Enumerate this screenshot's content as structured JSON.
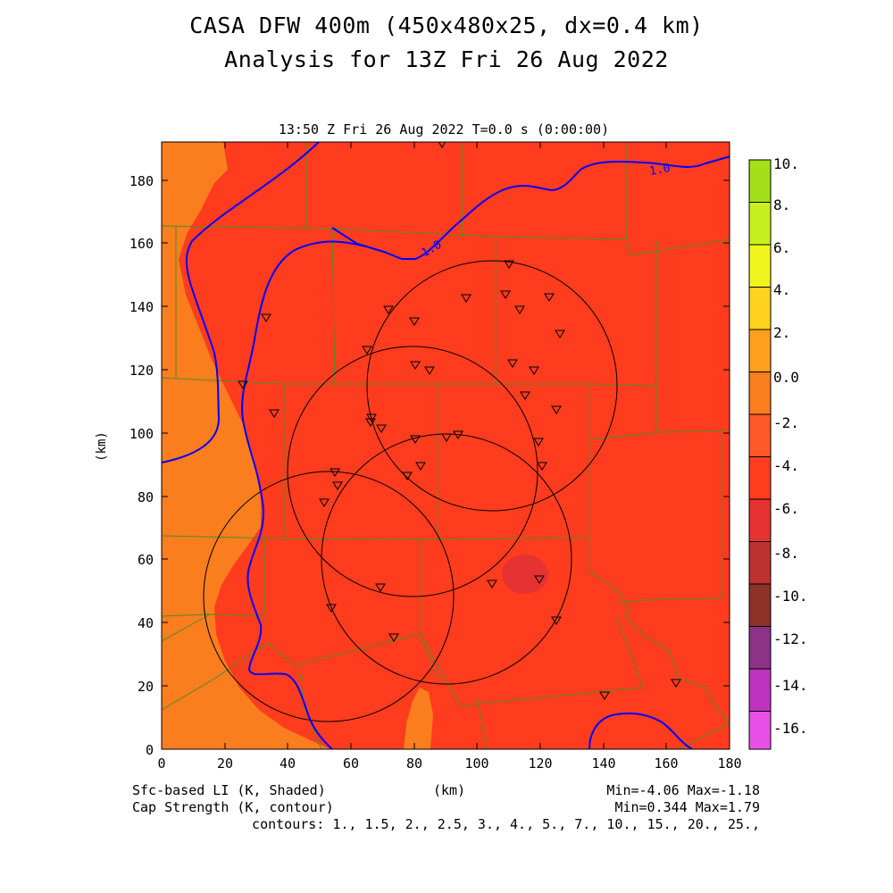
{
  "header": {
    "title_line1": "CASA DFW 400m (450x480x25, dx=0.4 km)",
    "title_line2": "Analysis for 13Z Fri 26 Aug 2022"
  },
  "plot": {
    "time_label": "13:50 Z Fri 26 Aug 2022    T=0.0 s (0:00:00)",
    "x_axis_label": "(km)",
    "y_axis_label": "(km)",
    "x_ticks": [
      "0",
      "20",
      "40",
      "60",
      "80",
      "100",
      "120",
      "140",
      "160",
      "180"
    ],
    "y_ticks": [
      "0",
      "20",
      "40",
      "60",
      "80",
      "100",
      "120",
      "140",
      "160",
      "180"
    ],
    "contour_labels": [
      "1.0",
      "1.0"
    ]
  },
  "colorbar": {
    "labels": [
      "10.",
      "8.",
      "6.",
      "4.",
      "2.",
      "0.0",
      "-2.",
      "-4.",
      "-6.",
      "-8.",
      "-10.",
      "-12.",
      "-14.",
      "-16."
    ],
    "colors": [
      "#a3e019",
      "#c8f01e",
      "#f0f51e",
      "#fff01e",
      "#ffc81e",
      "#ffa01e",
      "#fa7d1e",
      "#ff6428",
      "#ff3c1e",
      "#e63232",
      "#be3232",
      "#963232",
      "#8c3287",
      "#be32be",
      "#e650e6"
    ]
  },
  "footer": {
    "field1": "Sfc-based LI (K, Shaded)",
    "field2": "Cap Strength (K, contour)",
    "units": "(km)",
    "stats1": "Min=-4.06 Max=-1.18",
    "stats2": "Min=0.344 Max=1.79",
    "contours": "contours: 1., 1.5, 2., 2.5, 3., 4., 5., 7., 10., 15., 20., 25.,"
  },
  "colors": {
    "shade_main": "#ff3c1e",
    "shade_light": "#fa7d1e",
    "shade_dark": "#e63232",
    "contour": "#0000ff",
    "county_lines": "#508c28"
  }
}
